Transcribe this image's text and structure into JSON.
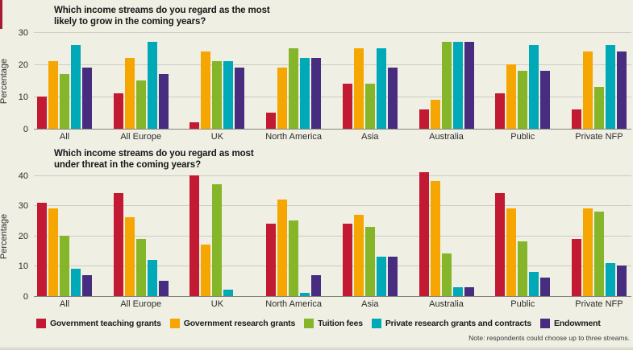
{
  "note": "Note: respondents could choose up to three streams.",
  "chart_data": [
    {
      "type": "bar",
      "title": "Which income streams do you regard as the most\nlikely to grow in the coming years?",
      "ylabel": "Percentage",
      "ylim": [
        0,
        30
      ],
      "yticks": [
        0,
        10,
        20,
        30
      ],
      "grid": true,
      "legend_position": "bottom-shared",
      "categories": [
        "All",
        "All Europe",
        "UK",
        "North America",
        "Asia",
        "Australia",
        "Public",
        "Private NFP"
      ],
      "series": [
        {
          "name": "Government teaching grants",
          "color": "#c11a32",
          "values": [
            10,
            11,
            2,
            5,
            14,
            6,
            11,
            6
          ]
        },
        {
          "name": "Government research grants",
          "color": "#f6a600",
          "values": [
            21,
            22,
            24,
            19,
            25,
            9,
            20,
            24
          ]
        },
        {
          "name": "Tuition fees",
          "color": "#85b629",
          "values": [
            17,
            15,
            21,
            25,
            14,
            27,
            18,
            13
          ]
        },
        {
          "name": "Private research grants and contracts",
          "color": "#00a9b8",
          "values": [
            26,
            27,
            21,
            22,
            25,
            27,
            26,
            26
          ]
        },
        {
          "name": "Endowment",
          "color": "#472c80",
          "values": [
            19,
            17,
            19,
            22,
            19,
            27,
            18,
            24
          ]
        }
      ]
    },
    {
      "type": "bar",
      "title": "Which income streams do you regard as most\nunder threat in the coming years?",
      "ylabel": "Percentage",
      "ylim": [
        0,
        40
      ],
      "yticks": [
        0,
        10,
        20,
        30,
        40
      ],
      "grid": true,
      "legend_position": "bottom-shared",
      "categories": [
        "All",
        "All Europe",
        "UK",
        "North America",
        "Asia",
        "Australia",
        "Public",
        "Private NFP"
      ],
      "series": [
        {
          "name": "Government teaching grants",
          "color": "#c11a32",
          "values": [
            31,
            34,
            40,
            24,
            24,
            41,
            34,
            19
          ]
        },
        {
          "name": "Government research grants",
          "color": "#f6a600",
          "values": [
            29,
            26,
            17,
            32,
            27,
            38,
            29,
            29
          ]
        },
        {
          "name": "Tuition fees",
          "color": "#85b629",
          "values": [
            20,
            19,
            37,
            25,
            23,
            14,
            18,
            28
          ]
        },
        {
          "name": "Private research grants and contracts",
          "color": "#00a9b8",
          "values": [
            9,
            12,
            2,
            1,
            13,
            3,
            8,
            11
          ]
        },
        {
          "name": "Endowment",
          "color": "#472c80",
          "values": [
            7,
            5,
            0,
            7,
            13,
            3,
            6,
            10
          ]
        }
      ]
    }
  ]
}
